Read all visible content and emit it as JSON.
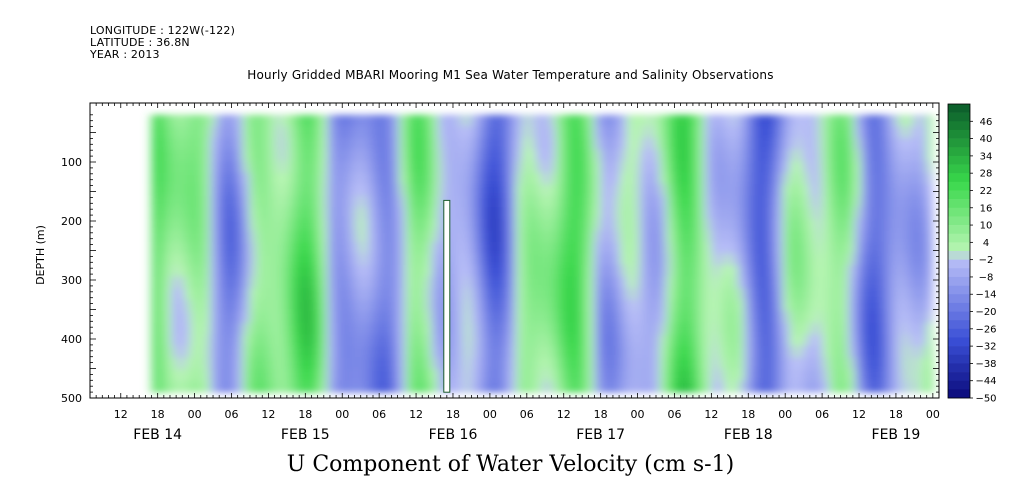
{
  "header": {
    "longitude": "LONGITUDE : 122W(-122)",
    "latitude": "LATITUDE : 36.8N",
    "year": "YEAR : 2013"
  },
  "chart_data": {
    "type": "heatmap",
    "title": "Hourly Gridded MBARI Mooring M1 Sea Water Temperature and Salinity Observations",
    "xlabel": "U Component of Water Velocity (cm s-1)",
    "ylabel": "DEPTH (m)",
    "ylim": [
      500,
      0
    ],
    "y_ticks": [
      100,
      200,
      300,
      400,
      500
    ],
    "data_depth_range": [
      20,
      490
    ],
    "x_hour_ticks": [
      "12",
      "18",
      "00",
      "06",
      "12",
      "18",
      "00",
      "06",
      "12",
      "18",
      "00",
      "06",
      "12",
      "18",
      "00",
      "06",
      "12",
      "18",
      "00",
      "06",
      "12",
      "18",
      "00",
      "06",
      "12",
      "18",
      "00"
    ],
    "x_day_labels": [
      {
        "label": "FEB 14",
        "hour": 18
      },
      {
        "label": "FEB 15",
        "hour": 18
      },
      {
        "label": "FEB 16",
        "hour": 18
      },
      {
        "label": "FEB 17",
        "hour": 18
      },
      {
        "label": "FEB 18",
        "hour": 18
      },
      {
        "label": "FEB 19",
        "hour": 18
      }
    ],
    "time_range": [
      "2013-02-14 07:00",
      "2013-02-20 01:00"
    ],
    "data_time_range": [
      "2013-02-14 17:00",
      "2013-02-20 00:00"
    ],
    "gap_time": "2013-02-16 17:00",
    "colorbar": {
      "levels": [
        46,
        40,
        34,
        28,
        22,
        16,
        10,
        4,
        -2,
        -8,
        -14,
        -20,
        -26,
        -32,
        -38,
        -44,
        -50
      ],
      "range": [
        -50,
        52
      ],
      "colors": {
        "neg_dark": "#0a0a7a",
        "neg_mid": "#3a4fd6",
        "neg_light": "#b9bff7",
        "pos_light": "#b8f5b4",
        "pos_mid": "#39d84b",
        "pos_dark": "#0a5a2a"
      }
    }
  }
}
